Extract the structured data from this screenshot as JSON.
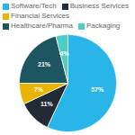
{
  "chart_data": {
    "type": "pie",
    "categories": [
      "Software/Tech",
      "Business Services",
      "Financial Services",
      "Healthcare/Pharma",
      "Packaging"
    ],
    "values": [
      57,
      11,
      7,
      21,
      4
    ],
    "value_labels": [
      "57%",
      "11%",
      "7%",
      "21%",
      "4%"
    ],
    "colors": [
      "#29b5e8",
      "#222b35",
      "#e8b400",
      "#1d5560",
      "#4ecdc4"
    ],
    "data_labels": true,
    "legend": "upper left"
  }
}
